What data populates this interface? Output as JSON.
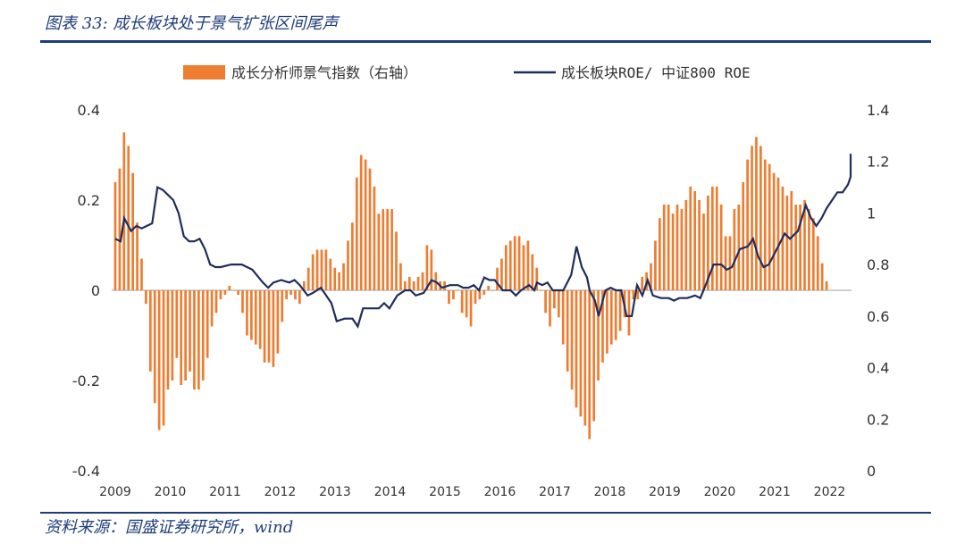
{
  "figure": {
    "title": "图表 33: 成长板块处于景气扩张区间尾声",
    "source": "资料来源：国盛证券研究所，wind"
  },
  "colors": {
    "bar": "#ED7D31",
    "line": "#1F2D5C",
    "accent": "#1F3D7A",
    "zero_line": "#bfbfbf"
  },
  "chart_data": {
    "type": "bar+line",
    "title": "",
    "legend_placement": "top",
    "grid": false,
    "x_range": [
      2009,
      2022.9
    ],
    "x_ticks": [
      "2009",
      "2010",
      "2011",
      "2012",
      "2013",
      "2014",
      "2015",
      "2016",
      "2017",
      "2018",
      "2019",
      "2020",
      "2021",
      "2022"
    ],
    "left_axis": {
      "lim": [
        -0.4,
        0.4
      ],
      "ticks": [
        "-0.4",
        "-0.2",
        "0",
        "0.2",
        "0.4"
      ]
    },
    "right_axis": {
      "lim": [
        0,
        1.4
      ],
      "ticks": [
        "0",
        "0.2",
        "0.4",
        "0.6",
        "0.8",
        "1",
        "1.2",
        "1.4"
      ]
    },
    "series": [
      {
        "name": "成长分析师景气指数（右轴）",
        "type": "bar",
        "axis": "left",
        "start": 2009.0,
        "step": 0.0833,
        "values": [
          0.24,
          0.27,
          0.35,
          0.32,
          0.26,
          0.15,
          0.07,
          -0.03,
          -0.18,
          -0.25,
          -0.31,
          -0.3,
          -0.22,
          -0.2,
          -0.15,
          -0.21,
          -0.2,
          -0.18,
          -0.22,
          -0.22,
          -0.2,
          -0.15,
          -0.08,
          -0.05,
          -0.02,
          -0.01,
          0.01,
          0.0,
          -0.01,
          -0.05,
          -0.1,
          -0.11,
          -0.12,
          -0.13,
          -0.16,
          -0.16,
          -0.17,
          -0.14,
          -0.07,
          -0.02,
          -0.01,
          -0.02,
          -0.03,
          0.02,
          0.05,
          0.08,
          0.09,
          0.09,
          0.09,
          0.07,
          0.05,
          0.04,
          0.06,
          0.11,
          0.15,
          0.25,
          0.3,
          0.29,
          0.27,
          0.23,
          0.17,
          0.18,
          0.18,
          0.18,
          0.13,
          0.06,
          0.02,
          0.03,
          0.02,
          0.03,
          0.04,
          0.1,
          0.09,
          0.04,
          0.02,
          0.02,
          -0.03,
          -0.02,
          0.0,
          -0.05,
          -0.06,
          -0.08,
          -0.03,
          -0.02,
          -0.01,
          0.01,
          0.0,
          0.05,
          0.07,
          0.1,
          0.11,
          0.12,
          0.12,
          0.1,
          0.11,
          0.08,
          0.05,
          0.0,
          -0.05,
          -0.08,
          -0.04,
          -0.06,
          -0.12,
          -0.18,
          -0.22,
          -0.26,
          -0.28,
          -0.3,
          -0.33,
          -0.29,
          -0.2,
          -0.16,
          -0.14,
          -0.12,
          -0.11,
          -0.09,
          -0.06,
          -0.1,
          -0.02,
          -0.02,
          0.03,
          0.04,
          0.06,
          0.11,
          0.16,
          0.19,
          0.19,
          0.17,
          0.19,
          0.18,
          0.2,
          0.23,
          0.22,
          0.2,
          0.17,
          0.21,
          0.23,
          0.23,
          0.19,
          0.12,
          0.12,
          0.18,
          0.19,
          0.24,
          0.29,
          0.32,
          0.34,
          0.32,
          0.29,
          0.28,
          0.26,
          0.25,
          0.23,
          0.21,
          0.22,
          0.19,
          0.19,
          0.2,
          0.18,
          0.16,
          0.12,
          0.06,
          0.02
        ]
      },
      {
        "name": "成长板块ROE/ 中证800 ROE",
        "type": "line",
        "axis": "right",
        "points": [
          [
            2009.0,
            0.9
          ],
          [
            2009.1,
            0.89
          ],
          [
            2009.17,
            0.98
          ],
          [
            2009.3,
            0.93
          ],
          [
            2009.4,
            0.95
          ],
          [
            2009.5,
            0.94
          ],
          [
            2009.6,
            0.95
          ],
          [
            2009.7,
            0.96
          ],
          [
            2009.8,
            1.1
          ],
          [
            2009.9,
            1.09
          ],
          [
            2010.0,
            1.07
          ],
          [
            2010.1,
            1.05
          ],
          [
            2010.2,
            1.0
          ],
          [
            2010.3,
            0.91
          ],
          [
            2010.4,
            0.89
          ],
          [
            2010.5,
            0.89
          ],
          [
            2010.6,
            0.9
          ],
          [
            2010.7,
            0.86
          ],
          [
            2010.8,
            0.8
          ],
          [
            2010.9,
            0.79
          ],
          [
            2011.0,
            0.79
          ],
          [
            2011.2,
            0.8
          ],
          [
            2011.4,
            0.8
          ],
          [
            2011.6,
            0.78
          ],
          [
            2011.8,
            0.73
          ],
          [
            2011.9,
            0.71
          ],
          [
            2012.0,
            0.73
          ],
          [
            2012.15,
            0.74
          ],
          [
            2012.3,
            0.73
          ],
          [
            2012.4,
            0.74
          ],
          [
            2012.5,
            0.72
          ],
          [
            2012.65,
            0.68
          ],
          [
            2012.75,
            0.69
          ],
          [
            2012.9,
            0.71
          ],
          [
            2013.0,
            0.68
          ],
          [
            2013.1,
            0.65
          ],
          [
            2013.2,
            0.58
          ],
          [
            2013.35,
            0.59
          ],
          [
            2013.5,
            0.59
          ],
          [
            2013.6,
            0.56
          ],
          [
            2013.7,
            0.63
          ],
          [
            2013.85,
            0.63
          ],
          [
            2014.0,
            0.63
          ],
          [
            2014.1,
            0.65
          ],
          [
            2014.2,
            0.63
          ],
          [
            2014.35,
            0.68
          ],
          [
            2014.5,
            0.7
          ],
          [
            2014.6,
            0.7
          ],
          [
            2014.7,
            0.68
          ],
          [
            2014.85,
            0.69
          ],
          [
            2015.0,
            0.74
          ],
          [
            2015.1,
            0.73
          ],
          [
            2015.2,
            0.71
          ],
          [
            2015.35,
            0.72
          ],
          [
            2015.5,
            0.72
          ],
          [
            2015.6,
            0.71
          ],
          [
            2015.7,
            0.71
          ],
          [
            2015.8,
            0.72
          ],
          [
            2015.9,
            0.7
          ],
          [
            2016.0,
            0.75
          ],
          [
            2016.1,
            0.74
          ],
          [
            2016.2,
            0.74
          ],
          [
            2016.35,
            0.7
          ],
          [
            2016.5,
            0.7
          ],
          [
            2016.6,
            0.68
          ],
          [
            2016.7,
            0.7
          ],
          [
            2016.85,
            0.72
          ],
          [
            2016.95,
            0.7
          ],
          [
            2017.0,
            0.73
          ],
          [
            2017.1,
            0.72
          ],
          [
            2017.2,
            0.73
          ],
          [
            2017.3,
            0.7
          ],
          [
            2017.4,
            0.7
          ],
          [
            2017.5,
            0.7
          ],
          [
            2017.65,
            0.76
          ],
          [
            2017.75,
            0.87
          ],
          [
            2017.85,
            0.79
          ],
          [
            2017.95,
            0.75
          ],
          [
            2018.0,
            0.7
          ],
          [
            2018.1,
            0.66
          ],
          [
            2018.17,
            0.6
          ],
          [
            2018.3,
            0.7
          ],
          [
            2018.4,
            0.71
          ],
          [
            2018.5,
            0.7
          ],
          [
            2018.6,
            0.7
          ],
          [
            2018.7,
            0.6
          ],
          [
            2018.8,
            0.6
          ],
          [
            2018.9,
            0.72
          ],
          [
            2019.0,
            0.68
          ],
          [
            2019.1,
            0.74
          ],
          [
            2019.2,
            0.68
          ],
          [
            2019.35,
            0.67
          ],
          [
            2019.5,
            0.67
          ],
          [
            2019.6,
            0.66
          ],
          [
            2019.7,
            0.67
          ],
          [
            2019.85,
            0.67
          ],
          [
            2020.0,
            0.68
          ],
          [
            2020.1,
            0.67
          ],
          [
            2020.2,
            0.72
          ],
          [
            2020.35,
            0.8
          ],
          [
            2020.5,
            0.8
          ],
          [
            2020.6,
            0.78
          ],
          [
            2020.7,
            0.79
          ],
          [
            2020.85,
            0.86
          ],
          [
            2021.0,
            0.87
          ],
          [
            2021.1,
            0.9
          ],
          [
            2021.2,
            0.83
          ],
          [
            2021.3,
            0.79
          ],
          [
            2021.4,
            0.8
          ],
          [
            2021.5,
            0.84
          ],
          [
            2021.6,
            0.88
          ],
          [
            2021.7,
            0.92
          ],
          [
            2021.8,
            0.9
          ],
          [
            2021.95,
            0.93
          ],
          [
            2022.1,
            1.03
          ],
          [
            2022.2,
            0.98
          ],
          [
            2022.3,
            0.95
          ],
          [
            2022.4,
            0.98
          ],
          [
            2022.5,
            1.02
          ],
          [
            2022.6,
            1.05
          ],
          [
            2022.7,
            1.08
          ],
          [
            2022.8,
            1.08
          ],
          [
            2022.9,
            1.11
          ],
          [
            2023.05,
            1.14
          ],
          [
            2023.15,
            1.17
          ],
          [
            2023.25,
            1.23
          ]
        ]
      }
    ]
  }
}
